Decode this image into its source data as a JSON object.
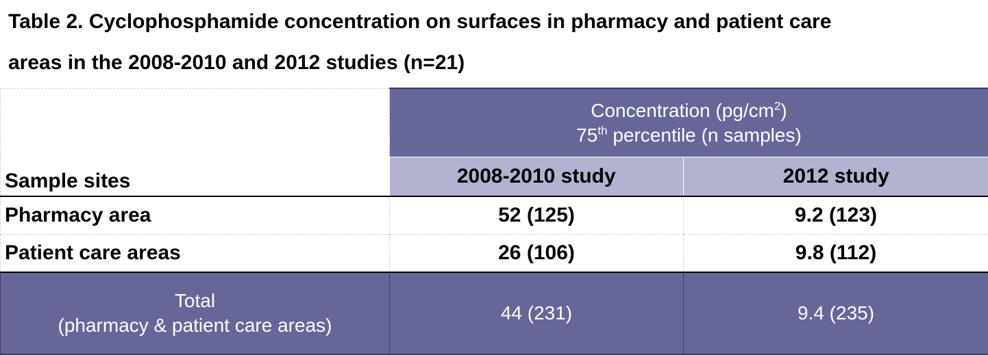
{
  "title": {
    "line1": "Table 2. Cyclophosphamide concentration on surfaces in pharmacy and patient care",
    "line2": "areas in the 2008-2010 and 2012 studies (n=21)"
  },
  "header": {
    "concentration_label": "Concentration (pg/cm",
    "concentration_sup": "2",
    "concentration_close": ")",
    "percentile_prefix": "75",
    "percentile_sup": "th",
    "percentile_suffix": " percentile (n samples)",
    "sample_sites": "Sample sites",
    "col_2008": "2008-2010 study",
    "col_2012": "2012 study"
  },
  "rows": [
    {
      "site": "Pharmacy area",
      "v2008": "52 (125)",
      "v2012": "9.2 (123)"
    },
    {
      "site": "Patient care areas",
      "v2008": "26 (106)",
      "v2012": "9.8 (112)"
    }
  ],
  "total": {
    "label_line1": "Total",
    "label_line2": "(pharmacy & patient care areas)",
    "v2008": "44 (231)",
    "v2012": "9.4 (235)"
  },
  "colors": {
    "header_dark": "#666699",
    "header_light": "#b3b3d1"
  }
}
